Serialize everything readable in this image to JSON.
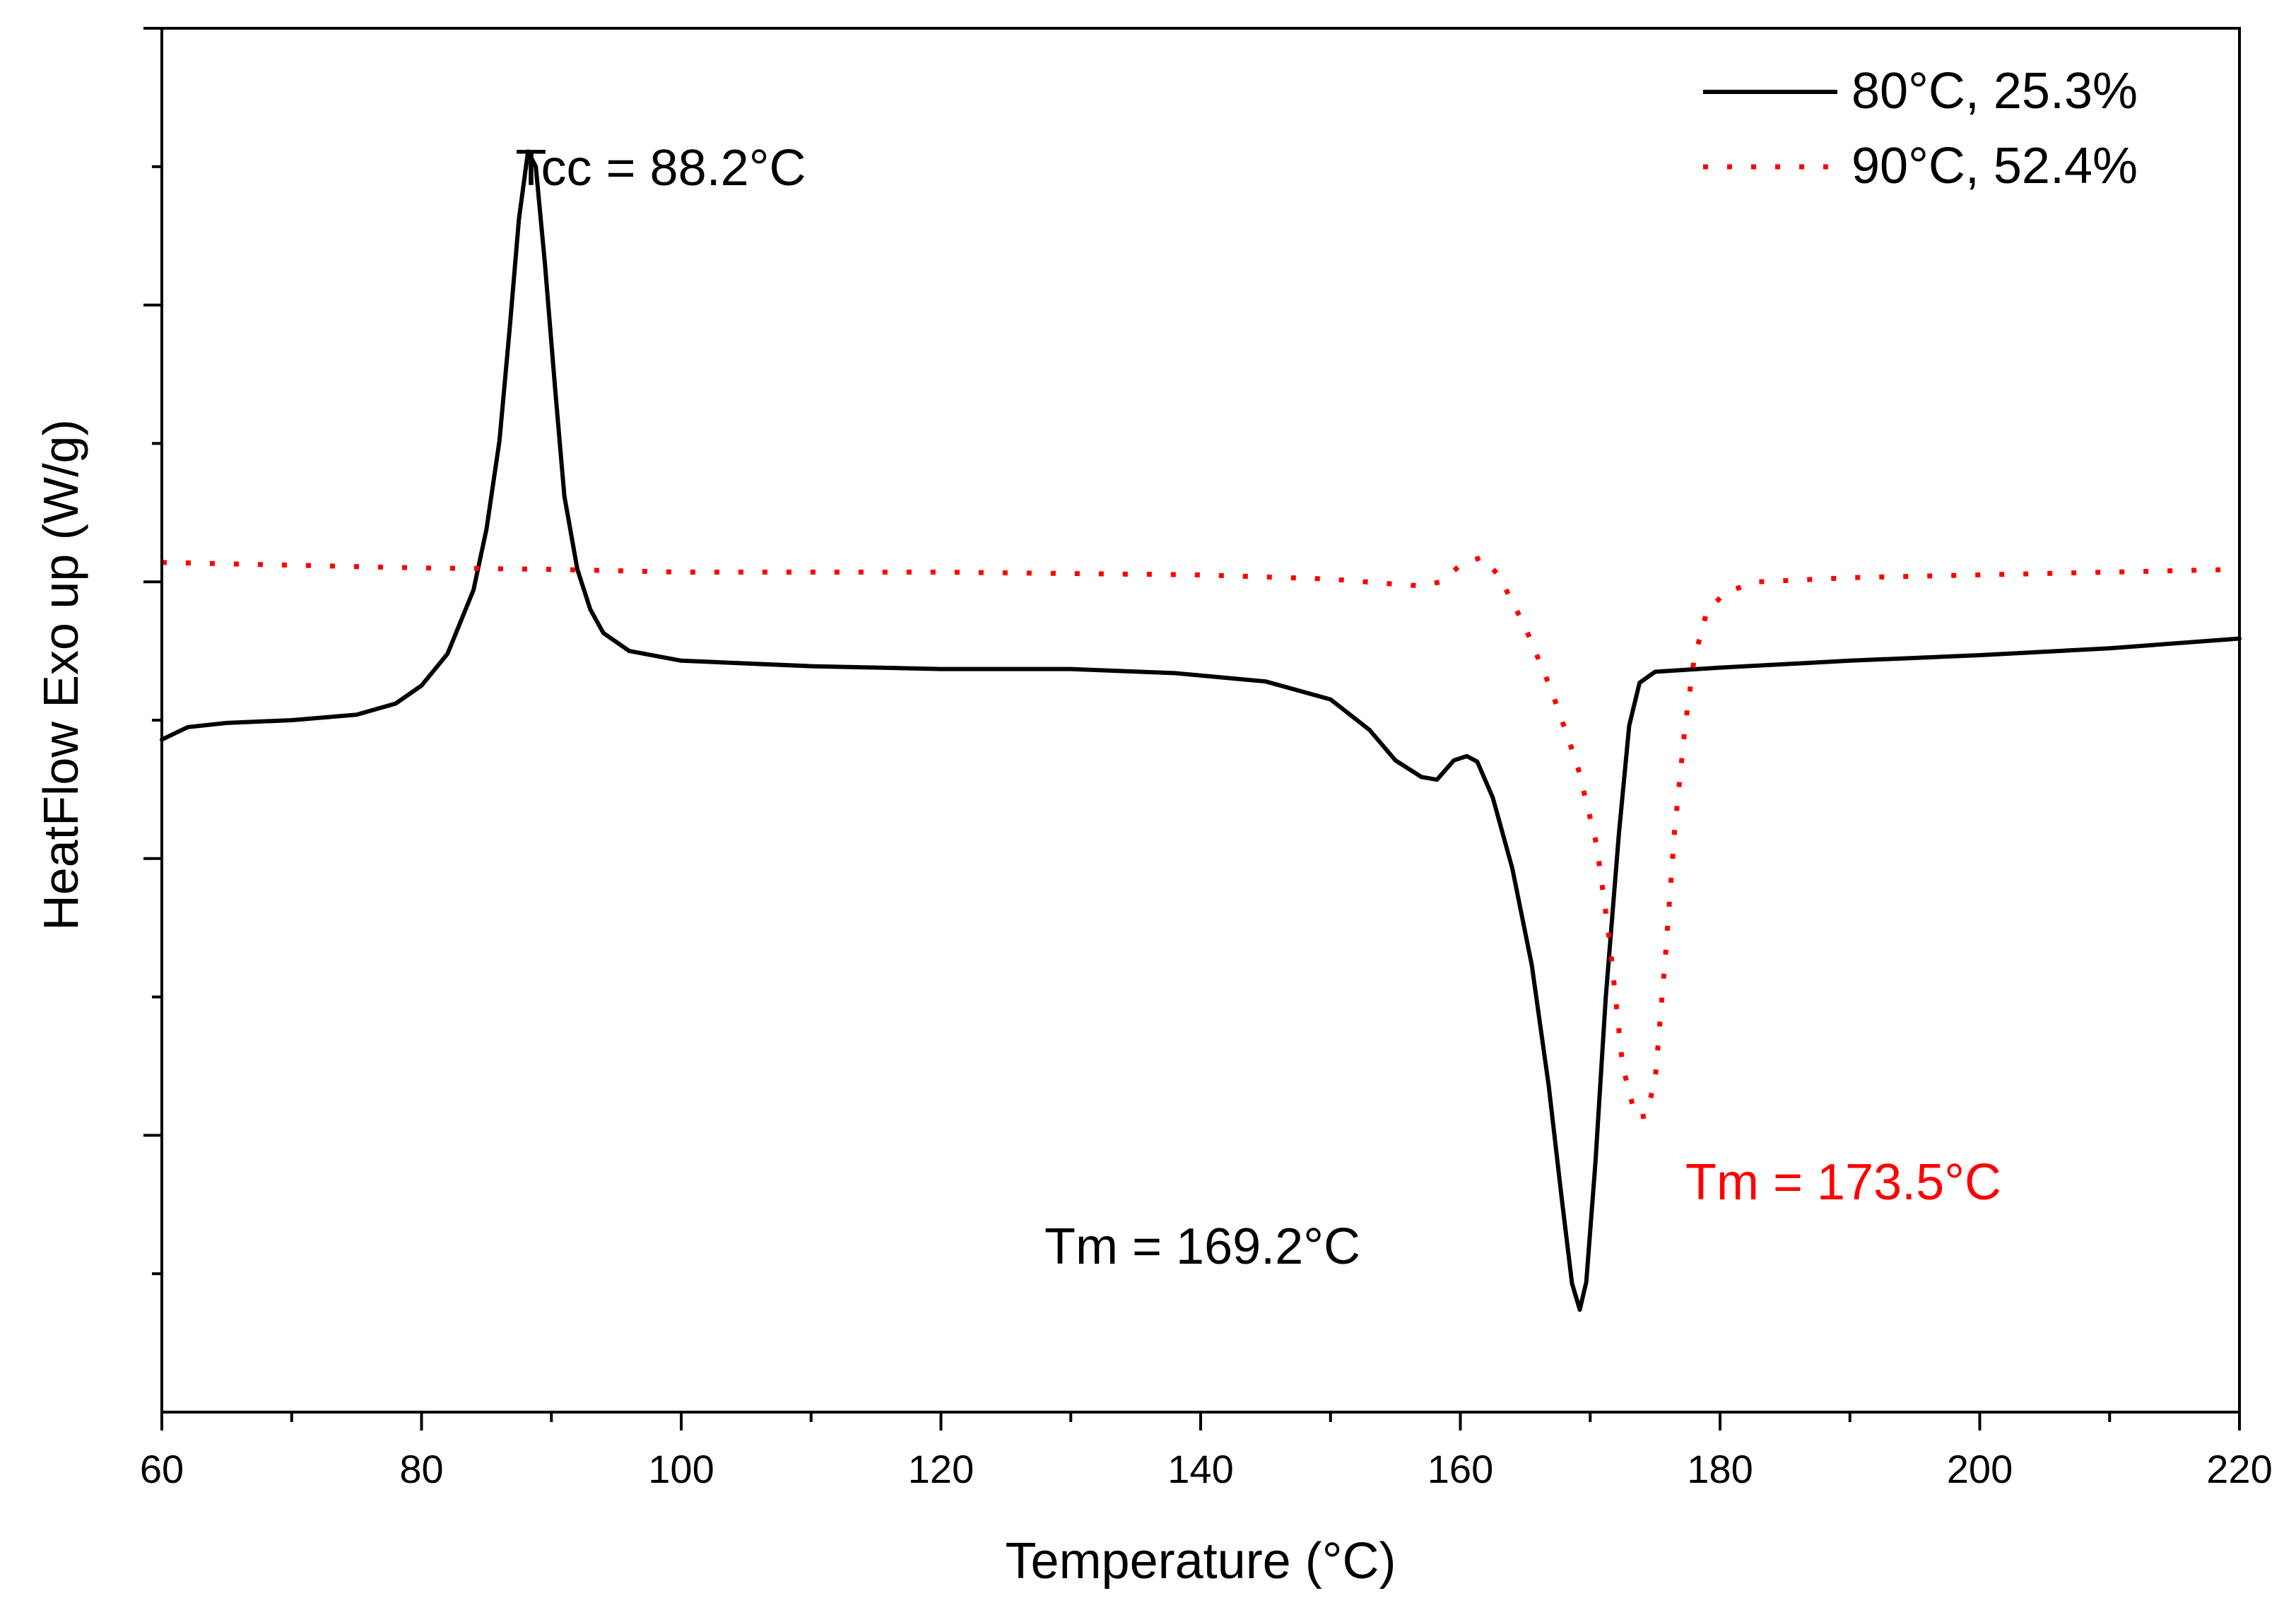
{
  "chart_data": {
    "type": "line",
    "xlabel": "Temperature (°C)",
    "ylabel": "HeatFlow Exo up (W/g)",
    "xlim": [
      60,
      220
    ],
    "ylim": [
      0,
      1
    ],
    "x_ticks": [
      60,
      80,
      100,
      120,
      140,
      160,
      180,
      200,
      220
    ],
    "x_minor_step": 10,
    "y_ticks": [
      0.1,
      0.2,
      0.3,
      0.4,
      0.5,
      0.6,
      0.7,
      0.8,
      0.9,
      1.0
    ],
    "y_tick_labels_shown": false,
    "legend_position": "top-right",
    "series": [
      {
        "name": "80°C, 25.3%",
        "color": "#000000",
        "style": "solid",
        "points": [
          [
            60,
            0.486
          ],
          [
            62,
            0.495
          ],
          [
            65,
            0.498
          ],
          [
            70,
            0.5
          ],
          [
            75,
            0.504
          ],
          [
            78,
            0.512
          ],
          [
            80,
            0.525
          ],
          [
            82,
            0.548
          ],
          [
            84,
            0.594
          ],
          [
            85,
            0.638
          ],
          [
            86,
            0.702
          ],
          [
            86.8,
            0.784
          ],
          [
            87.5,
            0.862
          ],
          [
            88.2,
            0.911
          ],
          [
            88.8,
            0.9
          ],
          [
            89.5,
            0.83
          ],
          [
            90.3,
            0.738
          ],
          [
            91,
            0.662
          ],
          [
            92,
            0.609
          ],
          [
            93,
            0.58
          ],
          [
            94,
            0.563
          ],
          [
            96,
            0.55
          ],
          [
            100,
            0.543
          ],
          [
            110,
            0.539
          ],
          [
            120,
            0.537
          ],
          [
            130,
            0.537
          ],
          [
            138,
            0.534
          ],
          [
            145,
            0.528
          ],
          [
            150,
            0.515
          ],
          [
            153,
            0.493
          ],
          [
            155,
            0.471
          ],
          [
            157,
            0.459
          ],
          [
            158.2,
            0.457
          ],
          [
            159.5,
            0.471
          ],
          [
            160.5,
            0.474
          ],
          [
            161.3,
            0.47
          ],
          [
            162.5,
            0.444
          ],
          [
            164,
            0.393
          ],
          [
            165.5,
            0.323
          ],
          [
            166.8,
            0.236
          ],
          [
            167.8,
            0.155
          ],
          [
            168.6,
            0.093
          ],
          [
            169.2,
            0.074
          ],
          [
            169.7,
            0.094
          ],
          [
            170.4,
            0.18
          ],
          [
            171.2,
            0.3
          ],
          [
            172.2,
            0.417
          ],
          [
            173,
            0.496
          ],
          [
            173.8,
            0.527
          ],
          [
            175,
            0.535
          ],
          [
            180,
            0.538
          ],
          [
            190,
            0.543
          ],
          [
            200,
            0.547
          ],
          [
            210,
            0.552
          ],
          [
            220,
            0.559
          ]
        ]
      },
      {
        "name": "90°C, 52.4%",
        "color": "#ff0000",
        "style": "dotted",
        "points": [
          [
            60,
            0.614
          ],
          [
            70,
            0.612
          ],
          [
            80,
            0.61
          ],
          [
            90,
            0.609
          ],
          [
            100,
            0.607
          ],
          [
            110,
            0.607
          ],
          [
            120,
            0.607
          ],
          [
            130,
            0.606
          ],
          [
            140,
            0.605
          ],
          [
            150,
            0.602
          ],
          [
            154,
            0.599
          ],
          [
            157,
            0.597
          ],
          [
            158.5,
            0.6
          ],
          [
            160,
            0.612
          ],
          [
            161.7,
            0.618
          ],
          [
            163,
            0.604
          ],
          [
            165,
            0.567
          ],
          [
            167,
            0.522
          ],
          [
            169,
            0.468
          ],
          [
            170.5,
            0.41
          ],
          [
            171.5,
            0.34
          ],
          [
            172.5,
            0.25
          ],
          [
            173.5,
            0.213
          ],
          [
            174.3,
            0.214
          ],
          [
            175,
            0.24
          ],
          [
            175.8,
            0.33
          ],
          [
            176.5,
            0.42
          ],
          [
            177.3,
            0.495
          ],
          [
            178,
            0.544
          ],
          [
            179,
            0.579
          ],
          [
            180.5,
            0.593
          ],
          [
            183,
            0.6
          ],
          [
            190,
            0.603
          ],
          [
            200,
            0.605
          ],
          [
            210,
            0.607
          ],
          [
            220,
            0.609
          ]
        ]
      }
    ],
    "annotations": [
      {
        "text": "Tcc = 88.2°C",
        "color": "#000000"
      },
      {
        "text": "Tm = 169.2°C",
        "color": "#000000"
      },
      {
        "text": "Tm = 173.5°C",
        "color": "#ff0000"
      }
    ]
  }
}
